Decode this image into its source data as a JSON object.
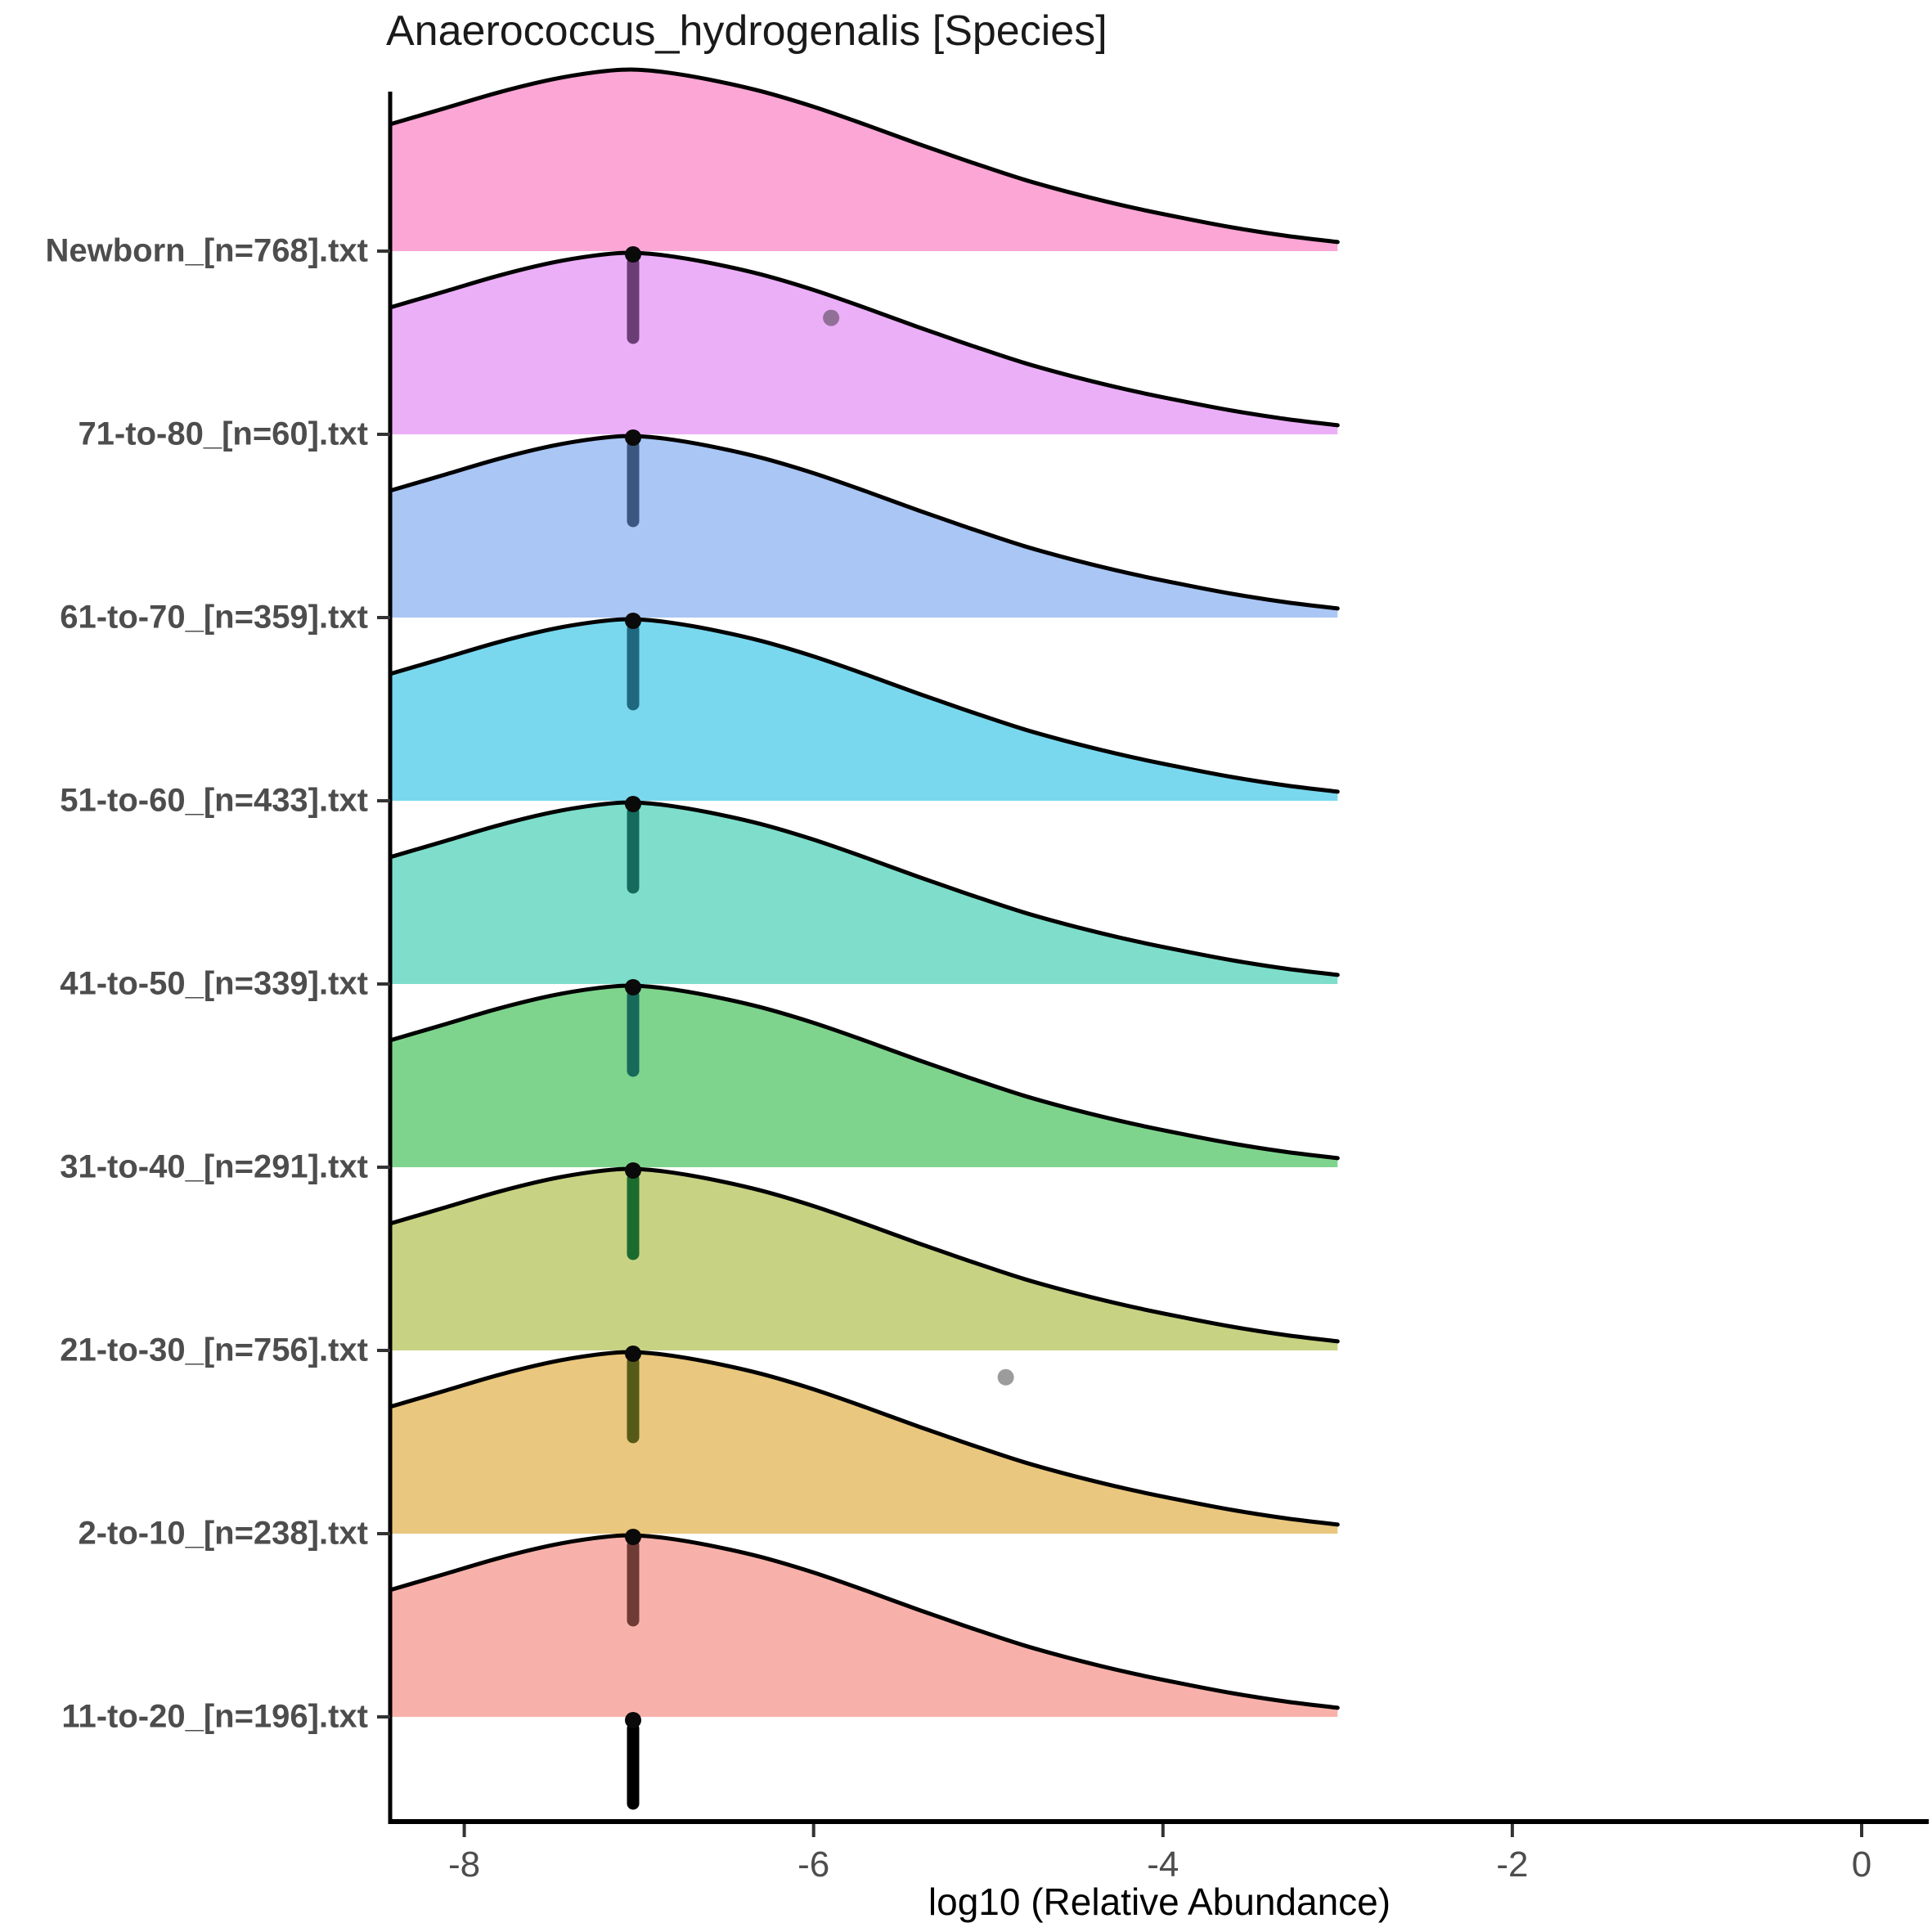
{
  "chart_data": {
    "type": "area",
    "subtype": "ridgeline-density (joyplot) with raincloud points below each baseline",
    "title": "Anaerococcus_hydrogenalis [Species]",
    "xlabel": "log10 (Relative Abundance)",
    "x_ticks": [
      -8,
      -6,
      -4,
      -2,
      0
    ],
    "x_axis_visible_range": [
      -8.42,
      0.4
    ],
    "density_x_range": [
      -8.42,
      -3.0
    ],
    "density_peak_at": -7.05,
    "density_profile_rel": [
      [
        -8.42,
        0.7
      ],
      [
        -8.1,
        0.79
      ],
      [
        -7.8,
        0.875
      ],
      [
        -7.5,
        0.945
      ],
      [
        -7.25,
        0.985
      ],
      [
        -7.05,
        1.0
      ],
      [
        -6.85,
        0.985
      ],
      [
        -6.6,
        0.945
      ],
      [
        -6.3,
        0.88
      ],
      [
        -6.0,
        0.795
      ],
      [
        -5.7,
        0.695
      ],
      [
        -5.4,
        0.59
      ],
      [
        -5.1,
        0.49
      ],
      [
        -4.8,
        0.395
      ],
      [
        -4.5,
        0.315
      ],
      [
        -4.2,
        0.245
      ],
      [
        -3.9,
        0.185
      ],
      [
        -3.6,
        0.13
      ],
      [
        -3.3,
        0.085
      ],
      [
        -3.0,
        0.05
      ]
    ],
    "point_spike_value": -7,
    "groups": [
      {
        "label": "Newborn_[n=768].txt",
        "n": 768,
        "fill": "#FBA6D5",
        "point_line_color": "#6A3D74"
      },
      {
        "label": "71-to-80_[n=60].txt",
        "n": 60,
        "fill": "#EBAFF8",
        "point_line_color": "#3B5680"
      },
      {
        "label": "61-to-70_[n=359].txt",
        "n": 359,
        "fill": "#A9C6F4",
        "point_line_color": "#1F6880"
      },
      {
        "label": "51-to-60_[n=433].txt",
        "n": 433,
        "fill": "#79D8EE",
        "point_line_color": "#156A5C"
      },
      {
        "label": "41-to-50_[n=339].txt",
        "n": 339,
        "fill": "#7EDECB",
        "point_line_color": "#17695A"
      },
      {
        "label": "31-to-40_[n=291].txt",
        "n": 291,
        "fill": "#7FD48D",
        "point_line_color": "#1C6B2E"
      },
      {
        "label": "21-to-30_[n=756].txt",
        "n": 756,
        "fill": "#C8D283",
        "point_line_color": "#565A18"
      },
      {
        "label": "2-to-10_[n=238].txt",
        "n": 238,
        "fill": "#E9C77E",
        "point_line_color": "#6E3C35"
      },
      {
        "label": "11-to-20_[n=196].txt",
        "n": 196,
        "fill": "#F8B1AA",
        "point_line_color": "#000000"
      }
    ],
    "outlier_points": [
      {
        "group": "Newborn_[n=768].txt",
        "value": -5.9,
        "jitter": 0.8
      },
      {
        "group": "21-to-30_[n=756].txt",
        "value": -4.9,
        "jitter": 0.27
      }
    ],
    "colors": {
      "curve_outline": "#000000",
      "axis_line": "#000000",
      "tick_mark": "#333333",
      "tick_label": "#4D4D4D",
      "y_label": "#4D4D4D",
      "title": "#1A1A1A",
      "outlier_point": "rgba(35,35,35,0.45)",
      "point_cap": "#0A0A0A"
    }
  }
}
